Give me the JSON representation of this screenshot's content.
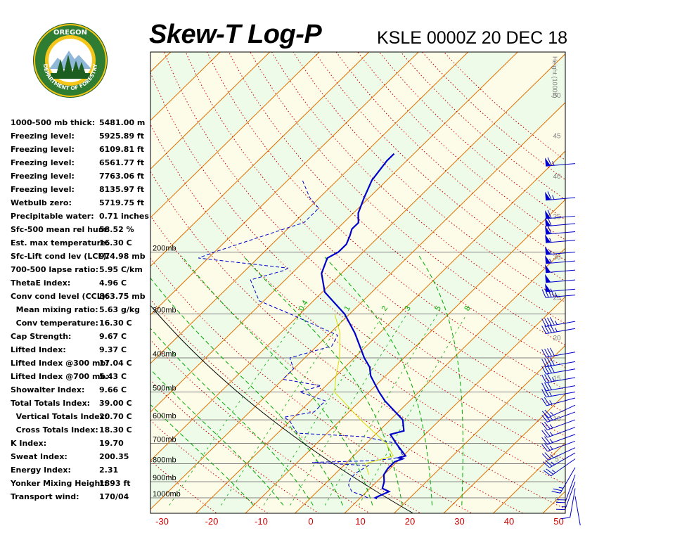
{
  "header": {
    "title": "Skew-T Log-P",
    "station": "KSLE 0000Z 20 DEC 18",
    "logo_top_text": "OREGON",
    "logo_bottom_text": "DEPARTMENT OF FORESTRY"
  },
  "indices": [
    {
      "label": "1000-500 mb thick:",
      "value": "5481.00 m"
    },
    {
      "label": "Freezing level:",
      "value": "5925.89 ft"
    },
    {
      "label": "Freezing level:",
      "value": "6109.81 ft"
    },
    {
      "label": "Freezing level:",
      "value": "6561.77 ft"
    },
    {
      "label": "Freezing level:",
      "value": "7763.06 ft"
    },
    {
      "label": "Freezing level:",
      "value": "8135.97 ft"
    },
    {
      "label": "Wetbulb zero:",
      "value": "5719.75 ft"
    },
    {
      "label": "Precipitable water:",
      "value": "0.71 inches"
    },
    {
      "label": "Sfc-500 mean rel hum:",
      "value": "58.52 %"
    },
    {
      "label": "Est. max temperature:",
      "value": "16.30 C"
    },
    {
      "label": "Sfc-Lift cond lev (LCL):",
      "value": "974.98 mb"
    },
    {
      "label": "700-500 lapse ratio:",
      "value": "5.95 C/km"
    },
    {
      "label": "ThetaE index:",
      "value": "4.96 C"
    },
    {
      "label": "Conv cond level (CCL):",
      "value": "863.75 mb"
    },
    {
      "label": "  Mean mixing ratio:",
      "value": "5.63 g/kg"
    },
    {
      "label": "  Conv temperature:",
      "value": "16.30 C"
    },
    {
      "label": "Cap Strength:",
      "value": "9.67 C"
    },
    {
      "label": "Lifted Index:",
      "value": "9.37 C"
    },
    {
      "label": "Lifted Index @300 mb:",
      "value": "17.04 C"
    },
    {
      "label": "Lifted Index @700 mb:",
      "value": "5.43 C"
    },
    {
      "label": "Showalter Index:",
      "value": "9.66 C"
    },
    {
      "label": "Total Totals Index:",
      "value": "39.00 C"
    },
    {
      "label": "  Vertical Totals Index:",
      "value": "20.70 C"
    },
    {
      "label": "  Cross Totals Index:",
      "value": "18.30 C"
    },
    {
      "label": "K Index:",
      "value": "19.70"
    },
    {
      "label": "Sweat Index:",
      "value": "200.35"
    },
    {
      "label": "Energy Index:",
      "value": "2.31"
    },
    {
      "label": "Yonker Mixing Height:",
      "value": "1893 ft"
    },
    {
      "label": "Transport wind:",
      "value": "170/04"
    }
  ],
  "chart_data": {
    "type": "line",
    "temperature_axis": {
      "range": [
        -32,
        52
      ],
      "ticks": [
        -30,
        -20,
        -10,
        0,
        10,
        20,
        30,
        40,
        50
      ],
      "tick_color": "#cc0000"
    },
    "pressure_levels": [
      {
        "p": 1000,
        "label": "1000mb"
      },
      {
        "p": 900,
        "label": "900mb"
      },
      {
        "p": 800,
        "label": "800mb"
      },
      {
        "p": 700,
        "label": "700mb"
      },
      {
        "p": 600,
        "label": "600mb"
      },
      {
        "p": 500,
        "label": "500mb"
      },
      {
        "p": 400,
        "label": "400mb"
      },
      {
        "p": 300,
        "label": "300mb"
      },
      {
        "p": 200,
        "label": "200mb"
      }
    ],
    "height_axis": {
      "label": "Height (1000ft)",
      "ticks": [
        0,
        5,
        10,
        15,
        20,
        25,
        30,
        35,
        40,
        45,
        50
      ]
    },
    "mixing_ratio_labels": [
      "0.4",
      "1",
      "2",
      "3",
      "5",
      "8"
    ],
    "colors": {
      "temperature": "#0000cc",
      "dewpoint": "#0000cc",
      "parcel": "#000000",
      "isotherm": "#e07000",
      "dry_adiabat": "#cc0000",
      "moist_adiabat": "#00aa00",
      "mixing_ratio": "#00aa00",
      "wetbulb": "#dddd00",
      "band_light": "#eefbe8",
      "band_yellow": "#fdfce8"
    },
    "series": [
      {
        "key": "temperature",
        "points": [
          {
            "p": 1005,
            "t": 13.5
          },
          {
            "p": 1000,
            "t": 13
          },
          {
            "p": 985,
            "t": 13.5
          },
          {
            "p": 960,
            "t": 14.5
          },
          {
            "p": 940,
            "t": 12.5
          },
          {
            "p": 900,
            "t": 11.5
          },
          {
            "p": 860,
            "t": 10
          },
          {
            "p": 825,
            "t": 9.5
          },
          {
            "p": 790,
            "t": 9.5
          },
          {
            "p": 775,
            "t": 10.5
          },
          {
            "p": 770,
            "t": 9.5
          },
          {
            "p": 760,
            "t": 10.5
          },
          {
            "p": 700,
            "t": 6
          },
          {
            "p": 660,
            "t": 3
          },
          {
            "p": 645,
            "t": 5
          },
          {
            "p": 600,
            "t": 2.5
          },
          {
            "p": 530,
            "t": -5
          },
          {
            "p": 500,
            "t": -8
          },
          {
            "p": 450,
            "t": -13
          },
          {
            "p": 425,
            "t": -15
          },
          {
            "p": 400,
            "t": -18
          },
          {
            "p": 340,
            "t": -25
          },
          {
            "p": 300,
            "t": -31
          },
          {
            "p": 260,
            "t": -39.5
          },
          {
            "p": 230,
            "t": -44
          },
          {
            "p": 208,
            "t": -46
          },
          {
            "p": 200,
            "t": -45
          },
          {
            "p": 190,
            "t": -45
          },
          {
            "p": 180,
            "t": -46
          },
          {
            "p": 172,
            "t": -47
          },
          {
            "p": 165,
            "t": -47
          },
          {
            "p": 155,
            "t": -49
          },
          {
            "p": 140,
            "t": -51
          },
          {
            "p": 125,
            "t": -53
          },
          {
            "p": 110,
            "t": -54
          },
          {
            "p": 105,
            "t": -54
          }
        ]
      },
      {
        "key": "dewpoint",
        "points": [
          {
            "p": 1000,
            "t": 11.5
          },
          {
            "p": 985,
            "t": 10
          },
          {
            "p": 960,
            "t": 7
          },
          {
            "p": 920,
            "t": 5
          },
          {
            "p": 880,
            "t": 4
          },
          {
            "p": 850,
            "t": 4
          },
          {
            "p": 810,
            "t": 5
          },
          {
            "p": 793,
            "t": -7
          },
          {
            "p": 785,
            "t": 4
          },
          {
            "p": 775,
            "t": 8.5
          },
          {
            "p": 760,
            "t": 10
          },
          {
            "p": 700,
            "t": 6
          },
          {
            "p": 670,
            "t": -2
          },
          {
            "p": 655,
            "t": -16
          },
          {
            "p": 630,
            "t": -18
          },
          {
            "p": 605,
            "t": -20
          },
          {
            "p": 590,
            "t": -22
          },
          {
            "p": 570,
            "t": -17
          },
          {
            "p": 530,
            "t": -17
          },
          {
            "p": 500,
            "t": -24
          },
          {
            "p": 480,
            "t": -21
          },
          {
            "p": 460,
            "t": -30
          },
          {
            "p": 430,
            "t": -30
          },
          {
            "p": 400,
            "t": -33
          },
          {
            "p": 370,
            "t": -27
          },
          {
            "p": 345,
            "t": -28
          },
          {
            "p": 300,
            "t": -42
          },
          {
            "p": 275,
            "t": -51
          },
          {
            "p": 240,
            "t": -57
          },
          {
            "p": 225,
            "t": -52
          },
          {
            "p": 222,
            "t": -52
          },
          {
            "p": 208,
            "t": -72
          },
          {
            "p": 200,
            "t": -70
          },
          {
            "p": 170,
            "t": -60
          },
          {
            "p": 165,
            "t": -58
          },
          {
            "p": 150,
            "t": -58
          },
          {
            "p": 140,
            "t": -62
          },
          {
            "p": 125,
            "t": -67
          }
        ]
      },
      {
        "key": "wetbulb",
        "points": [
          {
            "p": 860,
            "t": 7
          },
          {
            "p": 800,
            "t": 4
          },
          {
            "p": 760,
            "t": 8
          },
          {
            "p": 700,
            "t": 4
          },
          {
            "p": 600,
            "t": -6
          },
          {
            "p": 500,
            "t": -17
          },
          {
            "p": 450,
            "t": -20
          },
          {
            "p": 400,
            "t": -23
          },
          {
            "p": 340,
            "t": -28
          },
          {
            "p": 300,
            "t": -33
          }
        ]
      }
    ],
    "parcel_path": {
      "from": {
        "p": 1005,
        "t": 14
      },
      "dry_adiabat_theta_k": 288.5
    },
    "winds": [
      {
        "p": 990,
        "dir": 170,
        "spd": 4
      },
      {
        "p": 940,
        "dir": 190,
        "spd": 10
      },
      {
        "p": 900,
        "dir": 200,
        "spd": 15
      },
      {
        "p": 860,
        "dir": 200,
        "spd": 20
      },
      {
        "p": 820,
        "dir": 210,
        "spd": 25
      },
      {
        "p": 775,
        "dir": 235,
        "spd": 25
      },
      {
        "p": 745,
        "dir": 240,
        "spd": 25
      },
      {
        "p": 720,
        "dir": 245,
        "spd": 25
      },
      {
        "p": 690,
        "dir": 250,
        "spd": 25
      },
      {
        "p": 660,
        "dir": 250,
        "spd": 25
      },
      {
        "p": 630,
        "dir": 250,
        "spd": 25
      },
      {
        "p": 600,
        "dir": 250,
        "spd": 25
      },
      {
        "p": 570,
        "dir": 250,
        "spd": 25
      },
      {
        "p": 545,
        "dir": 245,
        "spd": 25
      },
      {
        "p": 520,
        "dir": 255,
        "spd": 25
      },
      {
        "p": 500,
        "dir": 260,
        "spd": 25
      },
      {
        "p": 480,
        "dir": 260,
        "spd": 30
      },
      {
        "p": 455,
        "dir": 260,
        "spd": 35
      },
      {
        "p": 430,
        "dir": 260,
        "spd": 40
      },
      {
        "p": 410,
        "dir": 260,
        "spd": 40
      },
      {
        "p": 385,
        "dir": 260,
        "spd": 40
      },
      {
        "p": 330,
        "dir": 260,
        "spd": 45
      },
      {
        "p": 315,
        "dir": 260,
        "spd": 45
      },
      {
        "p": 265,
        "dir": 265,
        "spd": 45
      },
      {
        "p": 255,
        "dir": 265,
        "spd": 50
      },
      {
        "p": 240,
        "dir": 265,
        "spd": 50
      },
      {
        "p": 225,
        "dir": 265,
        "spd": 50
      },
      {
        "p": 212,
        "dir": 265,
        "spd": 55
      },
      {
        "p": 200,
        "dir": 265,
        "spd": 55
      },
      {
        "p": 185,
        "dir": 265,
        "spd": 55
      },
      {
        "p": 175,
        "dir": 265,
        "spd": 60
      },
      {
        "p": 166,
        "dir": 265,
        "spd": 60
      },
      {
        "p": 158,
        "dir": 265,
        "spd": 60
      },
      {
        "p": 140,
        "dir": 265,
        "spd": 65
      },
      {
        "p": 112,
        "dir": 265,
        "spd": 65
      }
    ]
  }
}
